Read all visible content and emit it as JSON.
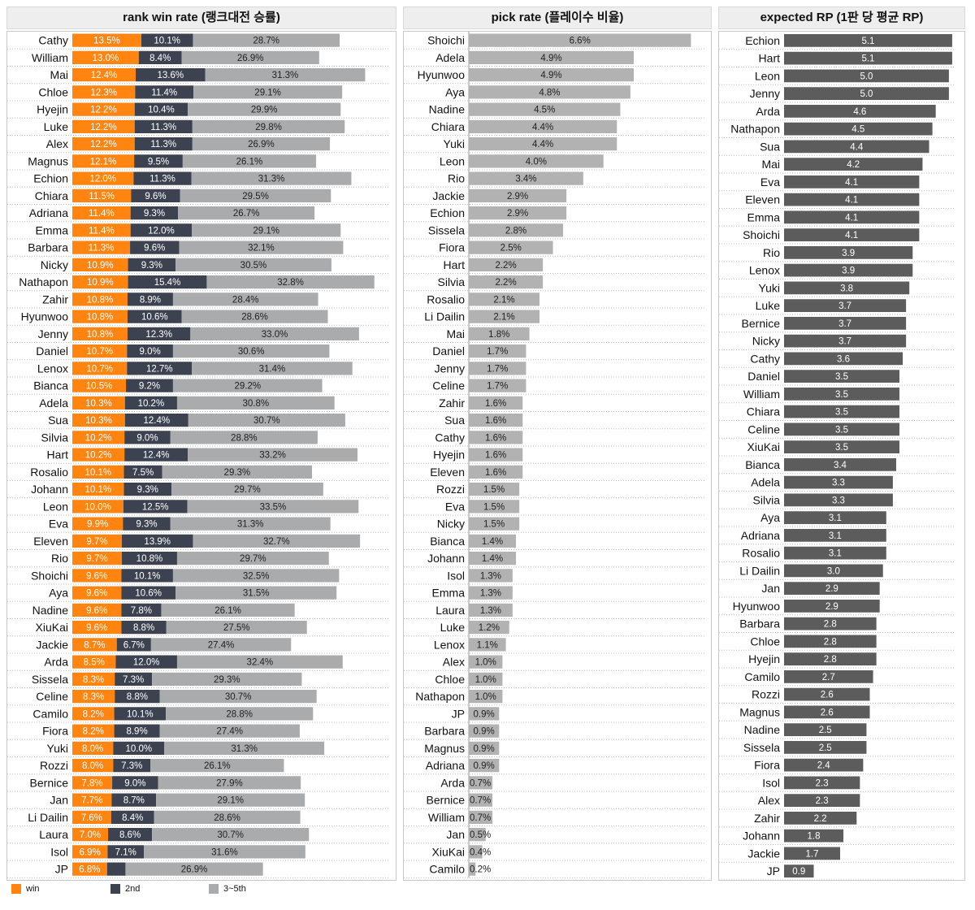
{
  "colors": {
    "win": "#ff8410",
    "second": "#3d4250",
    "third": "#a9abad",
    "pick": "#b2b2b2",
    "rp": "#5c5c5c"
  },
  "legend": [
    {
      "label": "win",
      "color": "#ff8410"
    },
    {
      "label": "2nd",
      "color": "#3d4250"
    },
    {
      "label": "3~5th",
      "color": "#a9abad"
    }
  ],
  "chart_data": [
    {
      "type": "bar",
      "title": "rank win rate (랭크대전 승률)",
      "stacked": true,
      "orientation": "horizontal",
      "categories": [
        "Cathy",
        "William",
        "Mai",
        "Chloe",
        "Hyejin",
        "Luke",
        "Alex",
        "Magnus",
        "Echion",
        "Chiara",
        "Adriana",
        "Emma",
        "Barbara",
        "Nicky",
        "Nathapon",
        "Zahir",
        "Hyunwoo",
        "Jenny",
        "Daniel",
        "Lenox",
        "Bianca",
        "Adela",
        "Sua",
        "Silvia",
        "Hart",
        "Rosalio",
        "Johann",
        "Leon",
        "Eva",
        "Eleven",
        "Rio",
        "Shoichi",
        "Aya",
        "Nadine",
        "XiuKai",
        "Jackie",
        "Arda",
        "Sissela",
        "Celine",
        "Camilo",
        "Fiora",
        "Yuki",
        "Rozzi",
        "Bernice",
        "Jan",
        "Li Dailin",
        "Laura",
        "Isol",
        "JP"
      ],
      "series": [
        {
          "name": "win",
          "values": [
            13.5,
            13.0,
            12.4,
            12.3,
            12.2,
            12.2,
            12.2,
            12.1,
            12.0,
            11.5,
            11.4,
            11.4,
            11.3,
            10.9,
            10.9,
            10.8,
            10.8,
            10.8,
            10.7,
            10.7,
            10.5,
            10.3,
            10.3,
            10.2,
            10.2,
            10.1,
            10.1,
            10.0,
            9.9,
            9.7,
            9.7,
            9.6,
            9.6,
            9.6,
            9.6,
            8.7,
            8.5,
            8.3,
            8.3,
            8.2,
            8.2,
            8.0,
            8.0,
            7.8,
            7.7,
            7.6,
            7.0,
            6.9,
            6.8
          ]
        },
        {
          "name": "2nd",
          "values": [
            10.1,
            8.4,
            13.6,
            11.4,
            10.4,
            11.3,
            11.3,
            9.5,
            11.3,
            9.6,
            9.3,
            12.0,
            9.6,
            9.3,
            15.4,
            8.9,
            10.6,
            12.3,
            9.0,
            12.7,
            9.2,
            10.2,
            12.4,
            9.0,
            12.4,
            7.5,
            9.3,
            12.5,
            9.3,
            13.9,
            10.8,
            10.1,
            10.6,
            7.8,
            8.8,
            6.7,
            12.0,
            7.3,
            8.8,
            10.1,
            8.9,
            10.0,
            7.3,
            9.0,
            8.7,
            8.4,
            8.6,
            7.1,
            3.6
          ]
        },
        {
          "name": "3~5th",
          "values": [
            28.7,
            26.9,
            31.3,
            29.1,
            29.9,
            29.8,
            26.9,
            26.1,
            31.3,
            29.5,
            26.7,
            29.1,
            32.1,
            30.5,
            32.8,
            28.4,
            28.6,
            33.0,
            30.6,
            31.4,
            29.2,
            30.8,
            30.7,
            28.8,
            33.2,
            29.3,
            29.7,
            33.5,
            31.3,
            32.7,
            29.7,
            32.5,
            31.5,
            26.1,
            27.5,
            27.4,
            32.4,
            29.3,
            30.7,
            28.8,
            27.4,
            31.3,
            26.1,
            27.9,
            29.1,
            28.6,
            30.7,
            31.6,
            26.9
          ]
        }
      ],
      "labels_shown": [
        [
          "13.5%",
          "10.1%",
          "28.7%"
        ],
        [
          "13.0%",
          "8.4%",
          "26.9%"
        ],
        [
          "12.4%",
          "13.6%",
          "31.3%"
        ],
        [
          "12.3%",
          "11.4%",
          "29.1%"
        ],
        [
          "12.2%",
          "10.4%",
          "29.9%"
        ],
        [
          "12.2%",
          "11.3%",
          "29.8%"
        ],
        [
          "12.2%",
          "11.3%",
          "26.9%"
        ],
        [
          "12.1%",
          "9.5%",
          "26.1%"
        ],
        [
          "12.0%",
          "11.3%",
          "31.3%"
        ],
        [
          "11.5%",
          "9.6%",
          "29.5%"
        ],
        [
          "11.4%",
          "9.3%",
          "26.7%"
        ],
        [
          "11.4%",
          "12.0%",
          "29.1%"
        ],
        [
          "11.3%",
          "9.6%",
          "32.1%"
        ],
        [
          "10.9%",
          "9.3%",
          "30.5%"
        ],
        [
          "10.9%",
          "15.4%",
          "32.8%"
        ],
        [
          "10.8%",
          "8.9%",
          "28.4%"
        ],
        [
          "10.8%",
          "10.6%",
          "28.6%"
        ],
        [
          "10.8%",
          "12.3%",
          "33.0%"
        ],
        [
          "10.7%",
          "9.0%",
          "30.6%"
        ],
        [
          "10.7%",
          "12.7%",
          "31.4%"
        ],
        [
          "10.5%",
          "9.2%",
          "29.2%"
        ],
        [
          "10.3%",
          "10.2%",
          "30.8%"
        ],
        [
          "10.3%",
          "12.4%",
          "30.7%"
        ],
        [
          "10.2%",
          "9.0%",
          "28.8%"
        ],
        [
          "10.2%",
          "12.4%",
          "33.2%"
        ],
        [
          "10.1%",
          "7.5%",
          "29.3%"
        ],
        [
          "10.1%",
          "9.3%",
          "29.7%"
        ],
        [
          "10.0%",
          "12.5%",
          "33.5%"
        ],
        [
          "9.9%",
          "9.3%",
          "31.3%"
        ],
        [
          "9.7%",
          "13.9%",
          "32.7%"
        ],
        [
          "9.7%",
          "10.8%",
          "29.7%"
        ],
        [
          "9.6%",
          "10.1%",
          "32.5%"
        ],
        [
          "9.6%",
          "10.6%",
          "31.5%"
        ],
        [
          "9.6%",
          "7.8%",
          "26.1%"
        ],
        [
          "9.6%",
          "8.8%",
          "27.5%"
        ],
        [
          "8.7%",
          "6.7%",
          "27.4%"
        ],
        [
          "8.5%",
          "12.0%",
          "32.4%"
        ],
        [
          "8.3%",
          "7.3%",
          "29.3%"
        ],
        [
          "8.3%",
          "8.8%",
          "30.7%"
        ],
        [
          "8.2%",
          "10.1%",
          "28.8%"
        ],
        [
          "8.2%",
          "8.9%",
          "27.4%"
        ],
        [
          "8.0%",
          "10.0%",
          "31.3%"
        ],
        [
          "8.0%",
          "7.3%",
          "26.1%"
        ],
        [
          "7.8%",
          "9.0%",
          "27.9%"
        ],
        [
          "7.7%",
          "8.7%",
          "29.1%"
        ],
        [
          "7.6%",
          "8.4%",
          "28.6%"
        ],
        [
          "7.0%",
          "8.6%",
          "30.7%"
        ],
        [
          "6.9%",
          "7.1%",
          "31.6%"
        ],
        [
          "6.8%",
          "",
          "26.9%"
        ]
      ],
      "xlim": [
        0,
        62
      ]
    },
    {
      "type": "bar",
      "title": "pick rate (플레이수 비율)",
      "orientation": "horizontal",
      "categories": [
        "Shoichi",
        "Adela",
        "Hyunwoo",
        "Aya",
        "Nadine",
        "Chiara",
        "Yuki",
        "Leon",
        "Rio",
        "Jackie",
        "Echion",
        "Sissela",
        "Fiora",
        "Hart",
        "Silvia",
        "Rosalio",
        "Li Dailin",
        "Mai",
        "Daniel",
        "Jenny",
        "Celine",
        "Zahir",
        "Sua",
        "Cathy",
        "Hyejin",
        "Eleven",
        "Rozzi",
        "Eva",
        "Nicky",
        "Bianca",
        "Johann",
        "Isol",
        "Emma",
        "Laura",
        "Luke",
        "Lenox",
        "Alex",
        "Chloe",
        "Nathapon",
        "JP",
        "Barbara",
        "Magnus",
        "Adriana",
        "Arda",
        "Bernice",
        "William",
        "Jan",
        "XiuKai",
        "Camilo"
      ],
      "values": [
        6.6,
        4.9,
        4.9,
        4.8,
        4.5,
        4.4,
        4.4,
        4.0,
        3.4,
        2.9,
        2.9,
        2.8,
        2.5,
        2.2,
        2.2,
        2.1,
        2.1,
        1.8,
        1.7,
        1.7,
        1.7,
        1.6,
        1.6,
        1.6,
        1.6,
        1.6,
        1.5,
        1.5,
        1.5,
        1.4,
        1.4,
        1.3,
        1.3,
        1.3,
        1.2,
        1.1,
        1.0,
        1.0,
        1.0,
        0.9,
        0.9,
        0.9,
        0.9,
        0.7,
        0.7,
        0.7,
        0.5,
        0.4,
        0.2
      ],
      "labels_shown": [
        "6.6%",
        "4.9%",
        "4.9%",
        "4.8%",
        "4.5%",
        "4.4%",
        "4.4%",
        "4.0%",
        "3.4%",
        "2.9%",
        "2.9%",
        "2.8%",
        "2.5%",
        "2.2%",
        "2.2%",
        "2.1%",
        "2.1%",
        "1.8%",
        "1.7%",
        "1.7%",
        "1.7%",
        "1.6%",
        "1.6%",
        "1.6%",
        "1.6%",
        "1.6%",
        "1.5%",
        "1.5%",
        "1.5%",
        "1.4%",
        "1.4%",
        "1.3%",
        "1.3%",
        "1.3%",
        "1.2%",
        "1.1%",
        "1.0%",
        "1.0%",
        "1.0%",
        "0.9%",
        "0.9%",
        "0.9%",
        "0.9%",
        "0.7%",
        "0.7%",
        "0.7%",
        "0.5%",
        "0.4%",
        "0.2%"
      ],
      "xlim": [
        0,
        7
      ]
    },
    {
      "type": "bar",
      "title": "expected RP (1판 당 평균 RP)",
      "orientation": "horizontal",
      "categories": [
        "Echion",
        "Hart",
        "Leon",
        "Jenny",
        "Arda",
        "Nathapon",
        "Sua",
        "Mai",
        "Eva",
        "Eleven",
        "Emma",
        "Shoichi",
        "Rio",
        "Lenox",
        "Yuki",
        "Luke",
        "Bernice",
        "Nicky",
        "Cathy",
        "Daniel",
        "William",
        "Chiara",
        "Celine",
        "XiuKai",
        "Bianca",
        "Adela",
        "Silvia",
        "Aya",
        "Adriana",
        "Rosalio",
        "Li Dailin",
        "Jan",
        "Hyunwoo",
        "Barbara",
        "Chloe",
        "Hyejin",
        "Camilo",
        "Rozzi",
        "Magnus",
        "Nadine",
        "Sissela",
        "Fiora",
        "Isol",
        "Alex",
        "Zahir",
        "Johann",
        "Jackie",
        "JP"
      ],
      "values": [
        5.1,
        5.1,
        5.0,
        5.0,
        4.6,
        4.5,
        4.4,
        4.2,
        4.1,
        4.1,
        4.1,
        4.1,
        3.9,
        3.9,
        3.8,
        3.7,
        3.7,
        3.7,
        3.6,
        3.5,
        3.5,
        3.5,
        3.5,
        3.5,
        3.4,
        3.3,
        3.3,
        3.1,
        3.1,
        3.1,
        3.0,
        2.9,
        2.9,
        2.8,
        2.8,
        2.8,
        2.7,
        2.6,
        2.6,
        2.5,
        2.5,
        2.4,
        2.3,
        2.3,
        2.2,
        1.8,
        1.7,
        0.9
      ],
      "labels_shown": [
        "5.1",
        "5.1",
        "5.0",
        "5.0",
        "4.6",
        "4.5",
        "4.4",
        "4.2",
        "4.1",
        "4.1",
        "4.1",
        "4.1",
        "3.9",
        "3.9",
        "3.8",
        "3.7",
        "3.7",
        "3.7",
        "3.6",
        "3.5",
        "3.5",
        "3.5",
        "3.5",
        "3.5",
        "3.4",
        "3.3",
        "3.3",
        "3.1",
        "3.1",
        "3.1",
        "3.0",
        "2.9",
        "2.9",
        "2.8",
        "2.8",
        "2.8",
        "2.7",
        "2.6",
        "2.6",
        "2.5",
        "2.5",
        "2.4",
        "2.3",
        "2.3",
        "2.2",
        "1.8",
        "1.7",
        "0.9"
      ],
      "xlim": [
        0,
        5.2
      ]
    }
  ]
}
